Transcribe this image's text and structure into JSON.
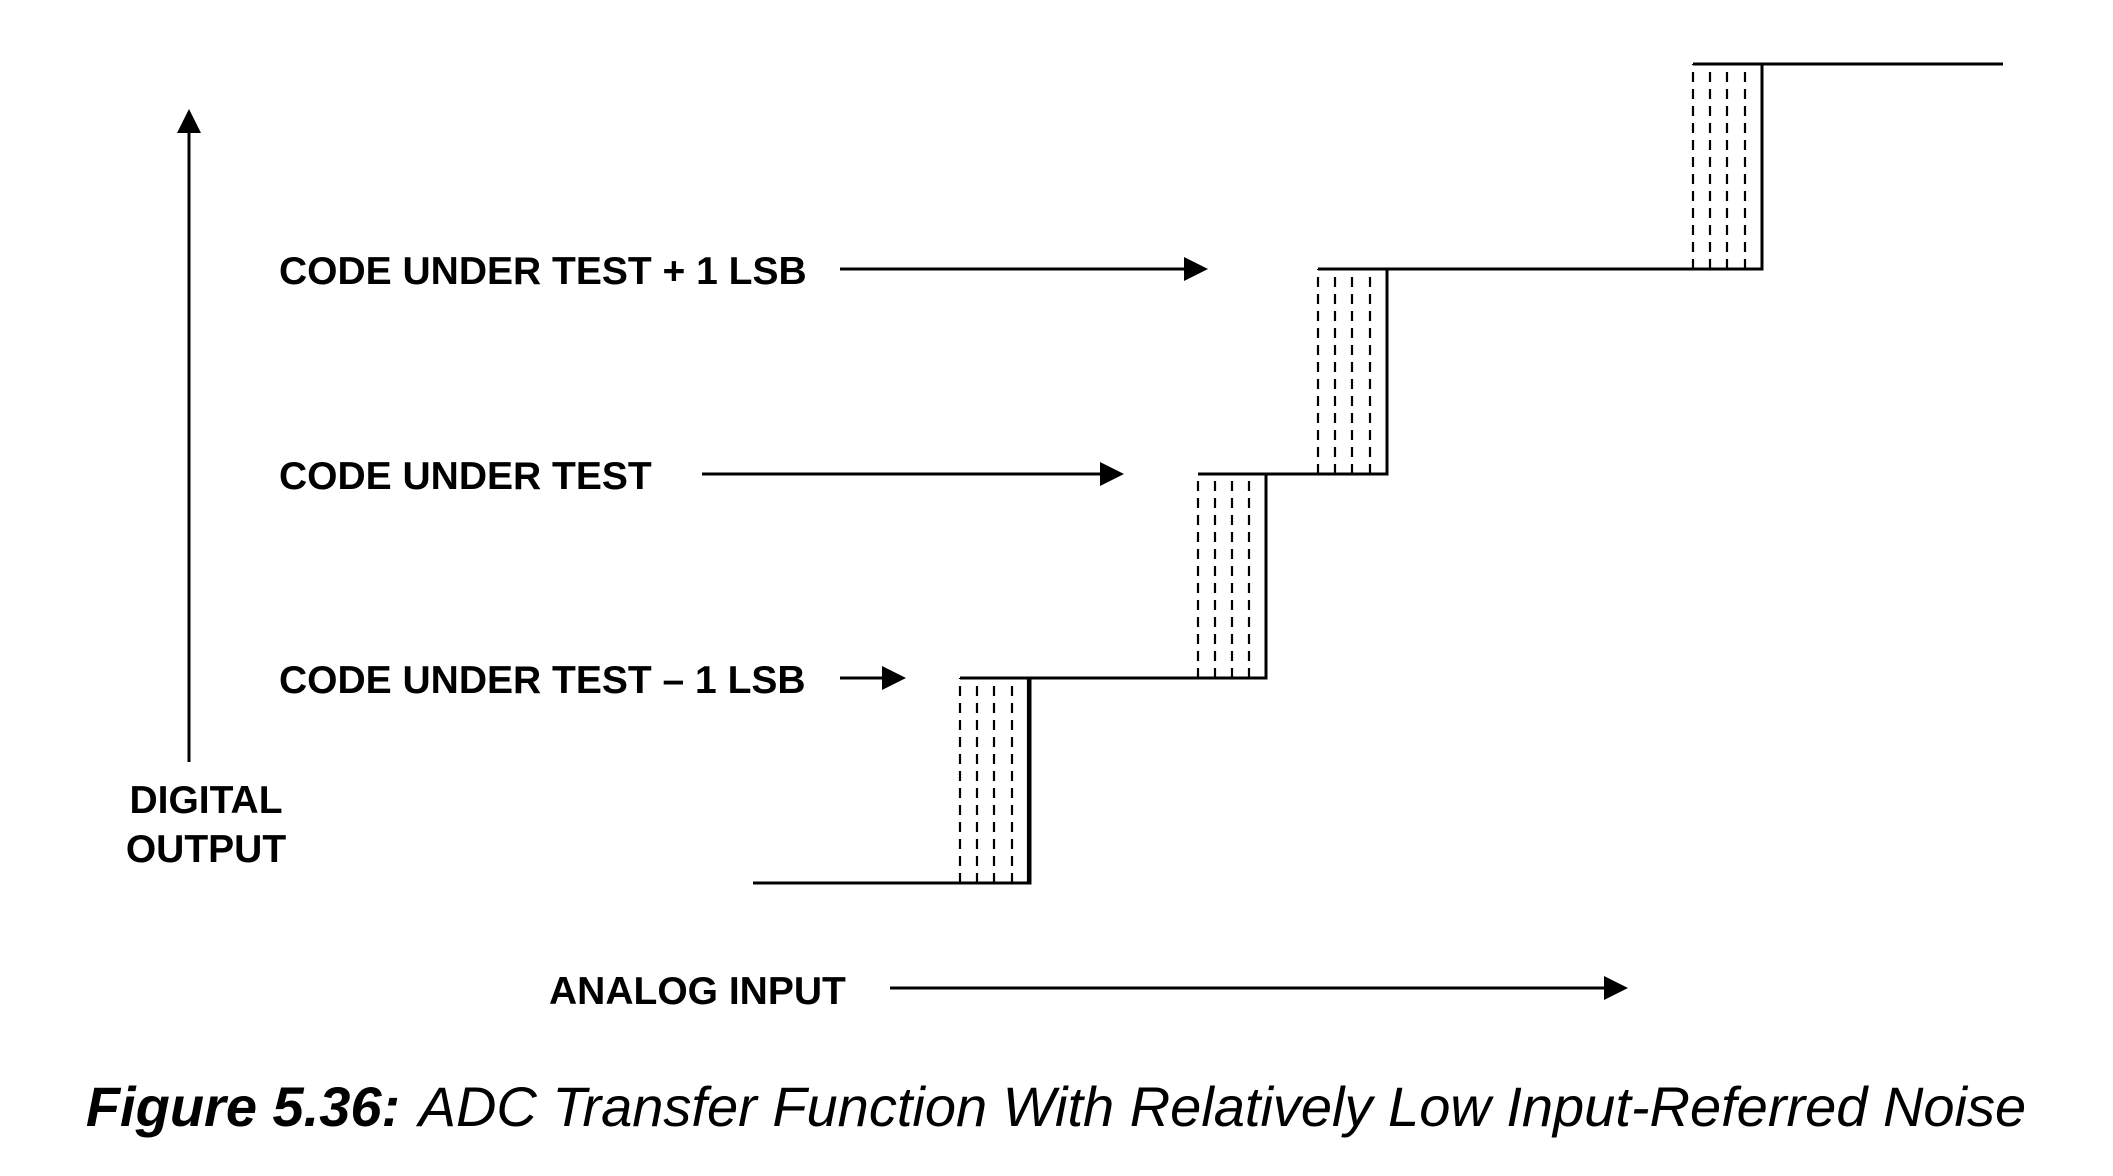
{
  "labels": {
    "code_plus_1": "CODE UNDER TEST + 1 LSB",
    "code": "CODE UNDER TEST",
    "code_minus_1": "CODE UNDER TEST – 1 LSB",
    "digital_output_line1": "DIGITAL",
    "digital_output_line2": "OUTPUT",
    "analog_input": "ANALOG INPUT"
  },
  "caption": {
    "number": "Figure 5.36:",
    "text": "ADC Transfer Function With Relatively Low Input-Referred Noise"
  },
  "colors": {
    "ink": "#000000",
    "background": "#ffffff"
  }
}
